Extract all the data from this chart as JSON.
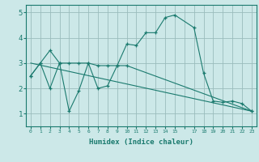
{
  "background_color": "#cce8e8",
  "grid_color": "#9abcbc",
  "line_color": "#1a7a6e",
  "line1_x": [
    0,
    1,
    2,
    3,
    4,
    5,
    6,
    7,
    8,
    9,
    10,
    11,
    12,
    13,
    14,
    15,
    17,
    18,
    19,
    20,
    21,
    22,
    23
  ],
  "line1_y": [
    2.5,
    3.0,
    3.5,
    3.0,
    3.0,
    3.0,
    3.0,
    2.9,
    2.9,
    2.9,
    3.75,
    3.7,
    4.2,
    4.2,
    4.8,
    4.9,
    4.4,
    2.6,
    1.5,
    1.45,
    1.5,
    1.4,
    1.1
  ],
  "line2_x": [
    0,
    1,
    2,
    3,
    4,
    5,
    6,
    7,
    8,
    9,
    10,
    23
  ],
  "line2_y": [
    2.5,
    3.0,
    2.0,
    3.0,
    1.1,
    1.9,
    3.0,
    2.0,
    2.1,
    2.9,
    2.9,
    1.1
  ],
  "line3_x": [
    0,
    23
  ],
  "line3_y": [
    3.0,
    1.1
  ],
  "xlabel": "Humidex (Indice chaleur)",
  "xlim": [
    -0.5,
    23.5
  ],
  "ylim": [
    0.5,
    5.3
  ],
  "yticks": [
    1,
    2,
    3,
    4,
    5
  ],
  "xtick_labels": [
    "0",
    "1",
    "2",
    "3",
    "4",
    "5",
    "6",
    "7",
    "8",
    "9",
    "10",
    "11",
    "12",
    "13",
    "14",
    "15",
    "",
    "17",
    "18",
    "19",
    "20",
    "21",
    "22",
    "23"
  ]
}
